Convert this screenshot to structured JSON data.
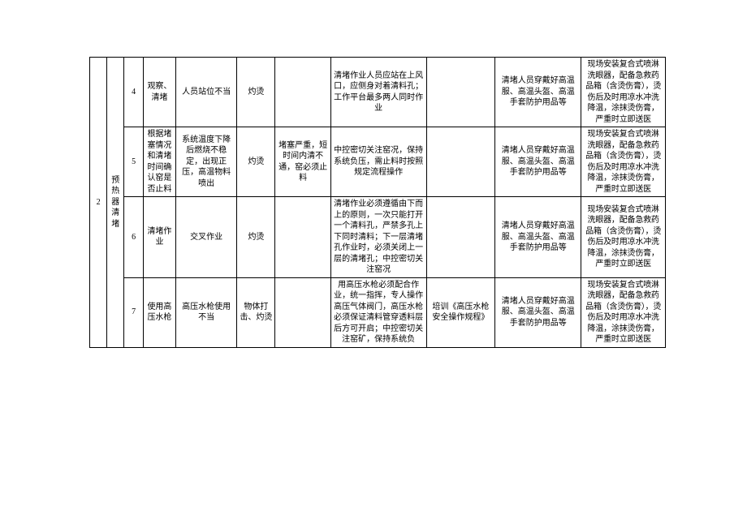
{
  "section": {
    "no": "2",
    "title": "预热器清堵"
  },
  "rows": [
    {
      "idx": "4",
      "step": "观察、清堵",
      "cause": "人员站位不当",
      "accident": "灼烫",
      "condition": "",
      "measure": "清堵作业人员应站在上风口，应侧身对着清料孔；工作平台最多两人同时作业",
      "training": "",
      "ppe": "清堵人员穿戴好高温服、高温头盔、高温手套防护用品等",
      "emergency": "现场安装复合式喷淋洗眼器，配备急救药品箱（含烫伤膏），烫伤后及时用凉水冲洗降温，涂抹烫伤膏，严重时立即送医"
    },
    {
      "idx": "5",
      "step": "根据堵塞情况和清堵时间确认窑是否止料",
      "cause": "系统温度下降后燃烧不稳定，出现正压，高温物料喷出",
      "accident": "灼烫",
      "condition": "堵塞严重，短时间内清不通，窑必须止料",
      "measure": "中控密切关注窑况，保持系统负压，需止料时按照规定流程操作",
      "training": "",
      "ppe": "清堵人员穿戴好高温服、高温头盔、高温手套防护用品等",
      "emergency": "现场安装复合式喷淋洗眼器，配备急救药品箱（含烫伤膏），烫伤后及时用凉水冲洗降温，涂抹烫伤膏，严重时立即送医"
    },
    {
      "idx": "6",
      "step": "清堵作业",
      "cause": "交叉作业",
      "accident": "灼烫",
      "condition": "",
      "measure": "清堵作业必须遵循由下而上的原则，一次只能打开一个清料孔，严禁多孔上下同时清料；下一层清堵孔作业时，必须关闭上一层的清堵孔；中控密切关注窑况",
      "training": "",
      "ppe": "清堵人员穿戴好高温服、高温头盔、高温手套防护用品等",
      "emergency": "现场安装复合式喷淋洗眼器，配备急救药品箱（含烫伤膏），烫伤后及时用凉水冲洗降温，涂抹烫伤膏，严重时立即送医"
    },
    {
      "idx": "7",
      "step": "使用高压水枪",
      "cause": "高压水枪使用不当",
      "accident": "物体打击、灼烫",
      "condition": "",
      "measure": "用高压水枪必须配合作业，统一指挥，专人操作高压气体阀门，高压水枪必须保证清料管穿透料层后方可开启；中控密切关注窑矿，保持系统负",
      "training": "培训《高压水枪安全操作规程》",
      "ppe": "清堵人员穿戴好高温服、高温头盔、高温手套防护用品等",
      "emergency": "现场安装复合式喷淋洗眼器，配备急救药品箱（含烫伤膏），烫伤后及时用凉水冲洗降温，涂抹烫伤膏，严重时立即送医"
    }
  ]
}
